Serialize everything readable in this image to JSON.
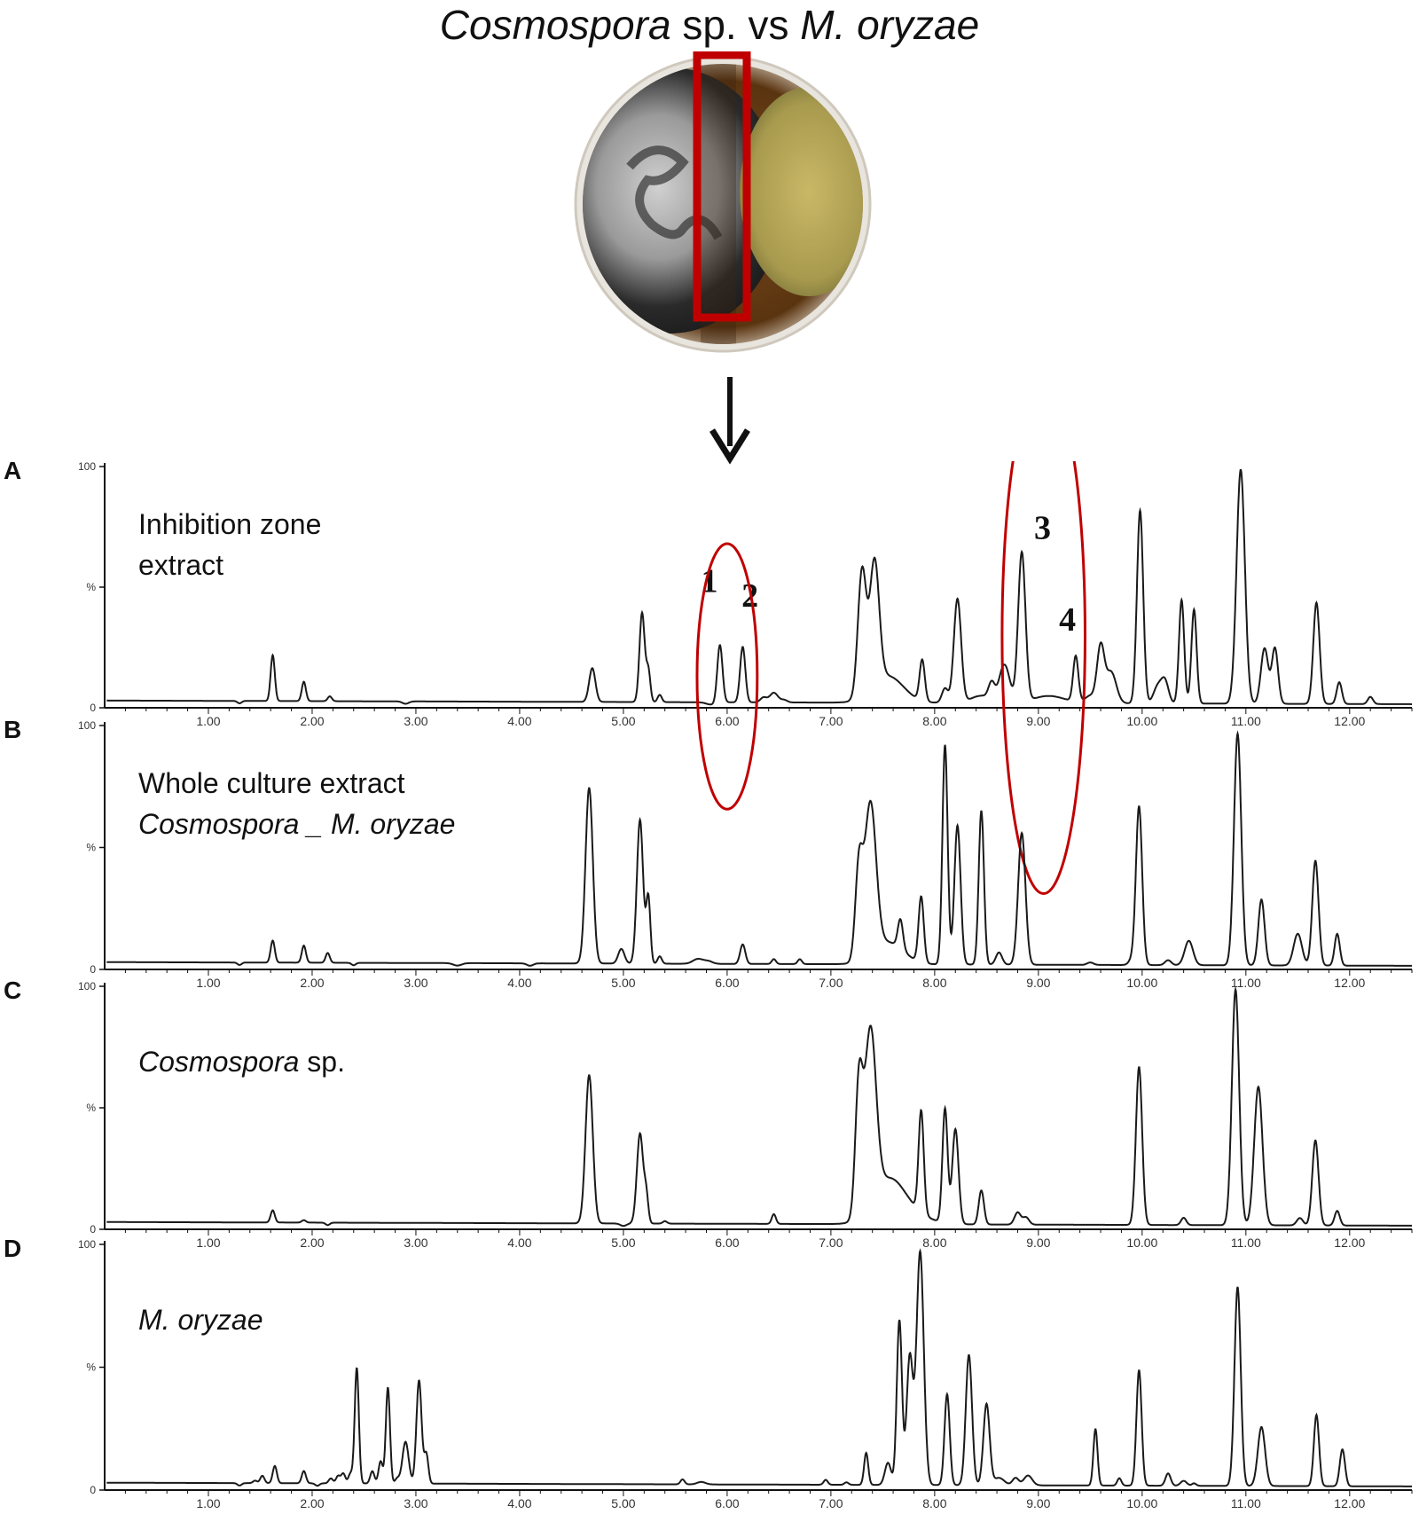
{
  "figure": {
    "title_part1": "Cosmospora",
    "title_part2": " sp. vs ",
    "title_part3": "M. oryzae"
  },
  "colors": {
    "trace": "#1a1a1a",
    "highlight": "#c00000",
    "axis": "#111111"
  },
  "chart_data": [
    {
      "type": "line",
      "panel": "A",
      "label_lines": [
        "Inhibition zone",
        "extract"
      ],
      "label_italic": [
        false,
        false
      ],
      "xlim": [
        0.0,
        12.6
      ],
      "ylim": [
        0,
        100
      ],
      "xticks": [
        "1.00",
        "2.00",
        "3.00",
        "4.00",
        "5.00",
        "6.00",
        "7.00",
        "8.00",
        "9.00",
        "10.00",
        "11.00",
        "12.00"
      ],
      "yticks": [
        "0",
        "%",
        "100"
      ],
      "baseline": 3,
      "peaks": [
        [
          1.3,
          2,
          0.02
        ],
        [
          1.62,
          22,
          0.02
        ],
        [
          1.92,
          11,
          0.02
        ],
        [
          2.17,
          5,
          0.02
        ],
        [
          2.4,
          3,
          0.02
        ],
        [
          2.9,
          2,
          0.03
        ],
        [
          3.4,
          3,
          0.04
        ],
        [
          4.7,
          17,
          0.03
        ],
        [
          5.18,
          40,
          0.025
        ],
        [
          5.24,
          16,
          0.02
        ],
        [
          5.35,
          6,
          0.02
        ],
        [
          5.85,
          2,
          0.05
        ],
        [
          5.93,
          27,
          0.025
        ],
        [
          6.15,
          26,
          0.025
        ],
        [
          6.35,
          5,
          0.03
        ],
        [
          6.45,
          7,
          0.04
        ],
        [
          6.55,
          4,
          0.03
        ],
        [
          7.3,
          55,
          0.04
        ],
        [
          7.42,
          55,
          0.045
        ],
        [
          7.55,
          14,
          0.15
        ],
        [
          7.88,
          20,
          0.025
        ],
        [
          8.1,
          9,
          0.03
        ],
        [
          8.22,
          46,
          0.035
        ],
        [
          8.45,
          6,
          0.1
        ],
        [
          8.55,
          10,
          0.03
        ],
        [
          8.65,
          13,
          0.04
        ],
        [
          8.7,
          12,
          0.04
        ],
        [
          8.84,
          65,
          0.035
        ],
        [
          9.1,
          6,
          0.15
        ],
        [
          9.36,
          22,
          0.025
        ],
        [
          9.5,
          6,
          0.05
        ],
        [
          9.6,
          26,
          0.035
        ],
        [
          9.7,
          16,
          0.05
        ],
        [
          9.98,
          83,
          0.03
        ],
        [
          10.15,
          10,
          0.04
        ],
        [
          10.22,
          12,
          0.035
        ],
        [
          10.38,
          46,
          0.025
        ],
        [
          10.5,
          42,
          0.025
        ],
        [
          10.95,
          100,
          0.04
        ],
        [
          11.18,
          26,
          0.035
        ],
        [
          11.28,
          26,
          0.03
        ],
        [
          11.68,
          45,
          0.03
        ],
        [
          11.9,
          12,
          0.025
        ],
        [
          12.2,
          6,
          0.025
        ]
      ],
      "annotations": [
        {
          "text": "1",
          "x": 5.83,
          "y": 48
        },
        {
          "text": "2",
          "x": 6.22,
          "y": 42
        },
        {
          "text": "3",
          "x": 9.04,
          "y": 70
        },
        {
          "text": "4",
          "x": 9.28,
          "y": 32
        }
      ],
      "ellipses": [
        {
          "cx": 6.0,
          "cy": 13,
          "rx": 0.29,
          "ry": 55
        },
        {
          "cx": 9.05,
          "cy": 30,
          "rx": 0.4,
          "ry": 107
        }
      ]
    },
    {
      "type": "line",
      "panel": "B",
      "label_lines": [
        "Whole culture extract",
        "Cosmospora _ M. oryzae"
      ],
      "label_italic": [
        false,
        true
      ],
      "xlim": [
        0.0,
        12.6
      ],
      "ylim": [
        0,
        100
      ],
      "xticks": [
        "1.00",
        "2.00",
        "3.00",
        "4.00",
        "5.00",
        "6.00",
        "7.00",
        "8.00",
        "9.00",
        "10.00",
        "11.00",
        "12.00"
      ],
      "yticks": [
        "0",
        "%",
        "100"
      ],
      "baseline": 3,
      "peaks": [
        [
          1.3,
          2,
          0.02
        ],
        [
          1.62,
          12,
          0.02
        ],
        [
          1.92,
          10,
          0.02
        ],
        [
          2.15,
          7,
          0.02
        ],
        [
          2.4,
          2,
          0.02
        ],
        [
          3.4,
          2,
          0.04
        ],
        [
          4.1,
          2,
          0.03
        ],
        [
          4.67,
          75,
          0.035
        ],
        [
          4.98,
          9,
          0.03
        ],
        [
          5.16,
          62,
          0.03
        ],
        [
          5.24,
          30,
          0.02
        ],
        [
          5.35,
          6,
          0.02
        ],
        [
          5.72,
          5,
          0.05
        ],
        [
          5.82,
          4,
          0.04
        ],
        [
          6.15,
          11,
          0.025
        ],
        [
          6.45,
          5,
          0.02
        ],
        [
          6.7,
          5,
          0.02
        ],
        [
          7.27,
          40,
          0.035
        ],
        [
          7.38,
          65,
          0.055
        ],
        [
          7.55,
          12,
          0.15
        ],
        [
          7.67,
          15,
          0.025
        ],
        [
          7.87,
          30,
          0.025
        ],
        [
          8.1,
          93,
          0.025
        ],
        [
          8.22,
          60,
          0.03
        ],
        [
          8.45,
          66,
          0.025
        ],
        [
          8.62,
          8,
          0.03
        ],
        [
          8.84,
          57,
          0.035
        ],
        [
          9.5,
          4,
          0.03
        ],
        [
          9.6,
          3,
          0.03
        ],
        [
          9.9,
          5,
          0.03
        ],
        [
          9.97,
          68,
          0.03
        ],
        [
          10.25,
          5,
          0.03
        ],
        [
          10.45,
          13,
          0.04
        ],
        [
          10.92,
          98,
          0.035
        ],
        [
          11.15,
          30,
          0.03
        ],
        [
          11.5,
          16,
          0.04
        ],
        [
          11.67,
          46,
          0.03
        ],
        [
          11.88,
          16,
          0.025
        ]
      ],
      "annotations": [],
      "ellipses": []
    },
    {
      "type": "line",
      "panel": "C",
      "label_lines": [
        "Cosmospora sp."
      ],
      "label_italic": [
        true
      ],
      "xlim": [
        0.0,
        12.6
      ],
      "ylim": [
        0,
        100
      ],
      "xticks": [
        "1.00",
        "2.00",
        "3.00",
        "4.00",
        "5.00",
        "6.00",
        "7.00",
        "8.00",
        "9.00",
        "10.00",
        "11.00",
        "12.00"
      ],
      "yticks": [
        "0",
        "%",
        "100"
      ],
      "baseline": 3,
      "peaks": [
        [
          1.62,
          8,
          0.02
        ],
        [
          1.92,
          4,
          0.02
        ],
        [
          2.15,
          2,
          0.02
        ],
        [
          4.67,
          64,
          0.035
        ],
        [
          5.0,
          2,
          0.03
        ],
        [
          5.16,
          40,
          0.03
        ],
        [
          5.22,
          14,
          0.02
        ],
        [
          5.4,
          4,
          0.02
        ],
        [
          5.75,
          3,
          0.05
        ],
        [
          6.45,
          7,
          0.02
        ],
        [
          7.27,
          56,
          0.035
        ],
        [
          7.38,
          75,
          0.055
        ],
        [
          7.55,
          18,
          0.15
        ],
        [
          7.7,
          8,
          0.2
        ],
        [
          7.87,
          45,
          0.025
        ],
        [
          8.1,
          50,
          0.025
        ],
        [
          8.2,
          42,
          0.03
        ],
        [
          8.45,
          17,
          0.025
        ],
        [
          8.8,
          8,
          0.03
        ],
        [
          8.88,
          6,
          0.03
        ],
        [
          9.97,
          68,
          0.03
        ],
        [
          10.4,
          6,
          0.025
        ],
        [
          10.9,
          100,
          0.035
        ],
        [
          11.12,
          60,
          0.04
        ],
        [
          11.52,
          6,
          0.03
        ],
        [
          11.67,
          38,
          0.03
        ],
        [
          11.88,
          9,
          0.025
        ]
      ],
      "annotations": [],
      "ellipses": []
    },
    {
      "type": "line",
      "panel": "D",
      "label_lines": [
        "M. oryzae"
      ],
      "label_italic": [
        true
      ],
      "xlim": [
        0.0,
        12.6
      ],
      "ylim": [
        0,
        100
      ],
      "xticks": [
        "1.00",
        "2.00",
        "3.00",
        "4.00",
        "5.00",
        "6.00",
        "7.00",
        "8.00",
        "9.00",
        "10.00",
        "11.00",
        "12.00"
      ],
      "yticks": [
        "0",
        "%",
        "100"
      ],
      "baseline": 3,
      "peaks": [
        [
          1.3,
          2,
          0.02
        ],
        [
          1.45,
          4,
          0.02
        ],
        [
          1.52,
          6,
          0.02
        ],
        [
          1.64,
          10,
          0.02
        ],
        [
          1.92,
          8,
          0.02
        ],
        [
          2.05,
          2,
          0.02
        ],
        [
          2.18,
          5,
          0.02
        ],
        [
          2.25,
          6,
          0.02
        ],
        [
          2.3,
          7,
          0.02
        ],
        [
          2.37,
          7,
          0.02
        ],
        [
          2.43,
          50,
          0.02
        ],
        [
          2.58,
          8,
          0.02
        ],
        [
          2.66,
          12,
          0.02
        ],
        [
          2.73,
          42,
          0.02
        ],
        [
          2.82,
          5,
          0.02
        ],
        [
          2.9,
          20,
          0.03
        ],
        [
          3.03,
          45,
          0.025
        ],
        [
          3.1,
          15,
          0.02
        ],
        [
          5.1,
          3,
          0.02
        ],
        [
          5.57,
          5,
          0.02
        ],
        [
          5.75,
          4,
          0.04
        ],
        [
          6.95,
          5,
          0.02
        ],
        [
          7.15,
          4,
          0.02
        ],
        [
          7.34,
          16,
          0.02
        ],
        [
          7.55,
          12,
          0.03
        ],
        [
          7.66,
          70,
          0.025
        ],
        [
          7.76,
          55,
          0.03
        ],
        [
          7.86,
          98,
          0.035
        ],
        [
          8.12,
          40,
          0.025
        ],
        [
          8.33,
          56,
          0.03
        ],
        [
          8.5,
          36,
          0.03
        ],
        [
          8.62,
          6,
          0.05
        ],
        [
          8.78,
          6,
          0.03
        ],
        [
          8.9,
          7,
          0.04
        ],
        [
          9.55,
          26,
          0.02
        ],
        [
          9.78,
          6,
          0.02
        ],
        [
          9.97,
          50,
          0.025
        ],
        [
          10.25,
          8,
          0.025
        ],
        [
          10.4,
          5,
          0.03
        ],
        [
          10.5,
          4,
          0.02
        ],
        [
          10.92,
          84,
          0.03
        ],
        [
          11.15,
          27,
          0.035
        ],
        [
          11.68,
          32,
          0.025
        ],
        [
          11.93,
          18,
          0.025
        ]
      ],
      "annotations": [],
      "ellipses": []
    }
  ]
}
